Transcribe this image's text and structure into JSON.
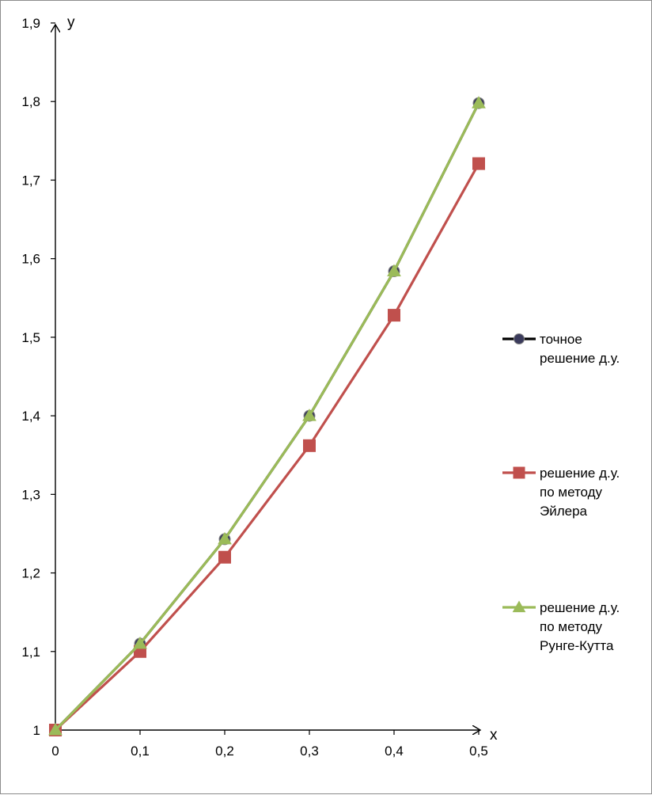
{
  "chart_data": {
    "type": "line",
    "xlabel": "x",
    "ylabel": "y",
    "x": [
      0,
      0.1,
      0.2,
      0.3,
      0.4,
      0.5
    ],
    "x_tick_labels": [
      "0",
      "0,1",
      "0,2",
      "0,3",
      "0,4",
      "0,5"
    ],
    "xlim": [
      0,
      0.5
    ],
    "ylim": [
      1,
      1.9
    ],
    "y_ticks": [
      1,
      1.1,
      1.2,
      1.3,
      1.4,
      1.5,
      1.6,
      1.7,
      1.8,
      1.9
    ],
    "y_tick_labels": [
      "1",
      "1,1",
      "1,2",
      "1,3",
      "1,4",
      "1,5",
      "1,6",
      "1,7",
      "1,8",
      "1,9"
    ],
    "grid": false,
    "legend_position": "right",
    "series": [
      {
        "name": "точное решение д.у.",
        "legend_lines": [
          "точное",
          "решение д.у."
        ],
        "values": [
          1,
          1.11,
          1.243,
          1.4,
          1.584,
          1.798
        ],
        "color": "#000000",
        "marker": "circle",
        "marker_fill": "#3b3b5c"
      },
      {
        "name": "решение д.у. по методу Эйлера",
        "legend_lines": [
          "решение д.у.",
          "по методу",
          "Эйлера"
        ],
        "values": [
          1,
          1.1,
          1.22,
          1.362,
          1.528,
          1.721
        ],
        "color": "#c0504d",
        "marker": "square",
        "marker_fill": "#c0504d"
      },
      {
        "name": "решение д.у. по методу Рунге-Кутта",
        "legend_lines": [
          "решение д.у.",
          "по методу",
          "Рунге-Кутта"
        ],
        "values": [
          1,
          1.11,
          1.243,
          1.4,
          1.584,
          1.798
        ],
        "color": "#9bbb59",
        "marker": "triangle",
        "marker_fill": "#9bbb59"
      }
    ]
  }
}
